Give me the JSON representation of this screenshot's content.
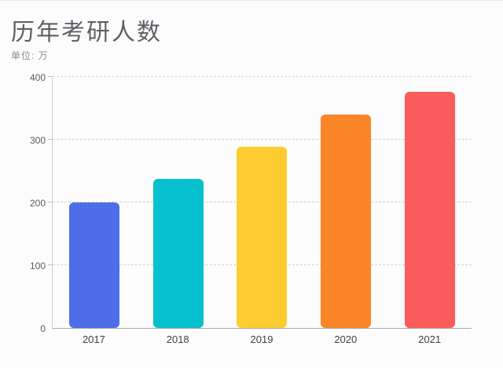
{
  "page": {
    "background": "#fcfcfc"
  },
  "header": {
    "title": "历年考研人数",
    "unit_label": "单位: 万"
  },
  "chart_data": {
    "type": "bar",
    "title": "历年考研人数",
    "subtitle": "单位: 万",
    "unit": "万",
    "categories": [
      "2017",
      "2018",
      "2019",
      "2020",
      "2021"
    ],
    "values": [
      201,
      238,
      290,
      341,
      377
    ],
    "bar_colors": [
      "#4d6ee8",
      "#06c1cd",
      "#fdcc30",
      "#fb8628",
      "#fb5c5c"
    ],
    "xlabel": "",
    "ylabel": "",
    "ylim": [
      0,
      400
    ],
    "yticks": [
      0,
      100,
      200,
      300,
      400
    ],
    "grid": "horizontal-dashed",
    "legend_position": "none"
  }
}
